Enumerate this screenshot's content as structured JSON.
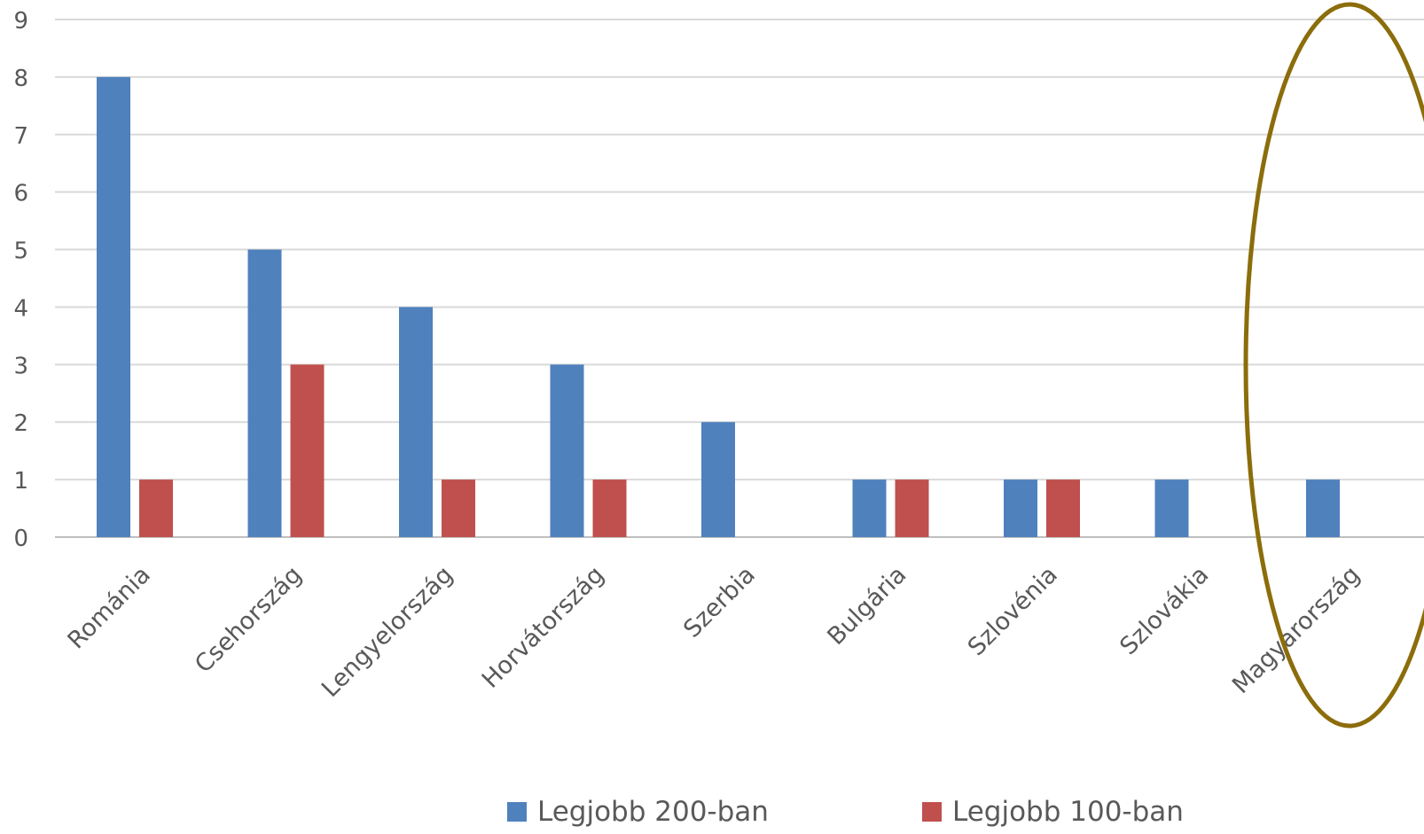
{
  "chart_data": {
    "type": "bar",
    "title": "",
    "xlabel": "",
    "ylabel": "",
    "ylim": [
      0,
      9
    ],
    "yticks": [
      0,
      1,
      2,
      3,
      4,
      5,
      6,
      7,
      8,
      9
    ],
    "grid": true,
    "legend_position": "bottom",
    "categories": [
      "Románia",
      "Csehország",
      "Lengyelország",
      "Horvátország",
      "Szerbia",
      "Bulgária",
      "Szlovénia",
      "Szlovákia",
      "Magyarország"
    ],
    "series": [
      {
        "name": "Legjobb 200-ban",
        "color": "#4f81bd",
        "values": [
          8,
          5,
          4,
          3,
          2,
          1,
          1,
          1,
          1
        ]
      },
      {
        "name": "Legjobb 100-ban",
        "color": "#c0504d",
        "values": [
          1,
          3,
          1,
          1,
          0,
          1,
          1,
          0,
          0
        ]
      }
    ],
    "highlight": {
      "category": "Magyarország",
      "shape": "ellipse",
      "color": "#8b6d0b"
    }
  }
}
